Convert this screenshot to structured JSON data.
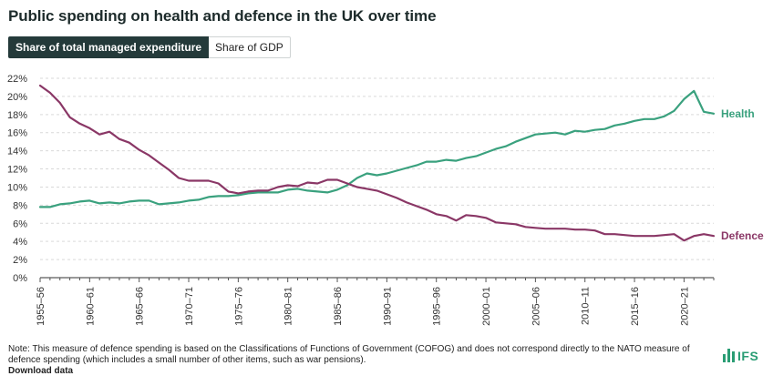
{
  "title": "Public spending on health and defence in the UK over time",
  "tabs": [
    {
      "label": "Share of total managed expenditure",
      "active": true
    },
    {
      "label": "Share of GDP",
      "active": false
    }
  ],
  "note": "Note: This measure of defence spending is based on the Classifications of Functions of Government (COFOG) and does not correspond directly to the NATO measure of defence spending (which includes a small number of other items, such as war pensions).",
  "download_label": "Download data",
  "logo": {
    "text": "IFS",
    "color": "#2a9d74"
  },
  "chart_data": {
    "type": "line",
    "title": "Public spending on health and defence in the UK over time",
    "xlabel": "",
    "ylabel": "",
    "ylim": [
      0,
      22
    ],
    "yticks": [
      "0%",
      "2%",
      "4%",
      "6%",
      "8%",
      "10%",
      "12%",
      "14%",
      "16%",
      "18%",
      "20%",
      "22%"
    ],
    "x": [
      "1955–56",
      "1956–57",
      "1957–58",
      "1958–59",
      "1959–60",
      "1960–61",
      "1961–62",
      "1962–63",
      "1963–64",
      "1964–65",
      "1965–66",
      "1966–67",
      "1967–68",
      "1968–69",
      "1969–70",
      "1970–71",
      "1971–72",
      "1972–73",
      "1973–74",
      "1974–75",
      "1975–76",
      "1976–77",
      "1977–78",
      "1978–79",
      "1979–80",
      "1980–81",
      "1981–82",
      "1982–83",
      "1983–84",
      "1984–85",
      "1985–86",
      "1986–87",
      "1987–88",
      "1988–89",
      "1989–90",
      "1990–91",
      "1991–92",
      "1992–93",
      "1993–94",
      "1994–95",
      "1995–96",
      "1996–97",
      "1997–98",
      "1998–99",
      "1999–00",
      "2000–01",
      "2001–02",
      "2002–03",
      "2003–04",
      "2004–05",
      "2005–06",
      "2006–07",
      "2007–08",
      "2008–09",
      "2009–10",
      "2010–11",
      "2011–12",
      "2012–13",
      "2013–14",
      "2014–15",
      "2015–16",
      "2016–17",
      "2017–18",
      "2018–19",
      "2019–20",
      "2020–21",
      "2021–22",
      "2022–23",
      "2023–24"
    ],
    "tick_labels": [
      "1955–56",
      "1960–61",
      "1965–66",
      "1970–71",
      "1975–76",
      "1980–81",
      "1985–86",
      "1990–91",
      "1995–96",
      "2000–01",
      "2005–06",
      "2010–11",
      "2015–16",
      "2020–21"
    ],
    "series": [
      {
        "name": "Health",
        "color": "#3aa17e",
        "values": [
          7.8,
          7.8,
          8.1,
          8.2,
          8.4,
          8.5,
          8.2,
          8.3,
          8.2,
          8.4,
          8.5,
          8.5,
          8.1,
          8.2,
          8.3,
          8.5,
          8.6,
          8.9,
          9.0,
          9.0,
          9.1,
          9.3,
          9.4,
          9.4,
          9.4,
          9.7,
          9.8,
          9.6,
          9.5,
          9.4,
          9.7,
          10.2,
          11.0,
          11.5,
          11.3,
          11.5,
          11.8,
          12.1,
          12.4,
          12.8,
          12.8,
          13.0,
          12.9,
          13.2,
          13.4,
          13.8,
          14.2,
          14.5,
          15.0,
          15.4,
          15.8,
          15.9,
          16.0,
          15.8,
          16.2,
          16.1,
          16.3,
          16.4,
          16.8,
          17.0,
          17.3,
          17.5,
          17.5,
          17.8,
          18.4,
          19.7,
          20.6,
          18.3,
          18.1
        ]
      },
      {
        "name": "Defence",
        "color": "#8a3766",
        "values": [
          21.2,
          20.4,
          19.3,
          17.7,
          17.0,
          16.5,
          15.8,
          16.1,
          15.3,
          14.9,
          14.1,
          13.5,
          12.7,
          11.9,
          11.0,
          10.7,
          10.7,
          10.7,
          10.4,
          9.5,
          9.3,
          9.5,
          9.6,
          9.6,
          10.0,
          10.2,
          10.1,
          10.5,
          10.4,
          10.8,
          10.8,
          10.4,
          10.0,
          9.8,
          9.6,
          9.2,
          8.8,
          8.3,
          7.9,
          7.5,
          7.0,
          6.8,
          6.3,
          6.9,
          6.8,
          6.6,
          6.1,
          6.0,
          5.9,
          5.6,
          5.5,
          5.4,
          5.4,
          5.4,
          5.3,
          5.3,
          5.2,
          4.8,
          4.8,
          4.7,
          4.6,
          4.6,
          4.6,
          4.7,
          4.8,
          4.1,
          4.6,
          4.8,
          4.6
        ]
      }
    ],
    "grid": true,
    "legend": "inline-right"
  }
}
